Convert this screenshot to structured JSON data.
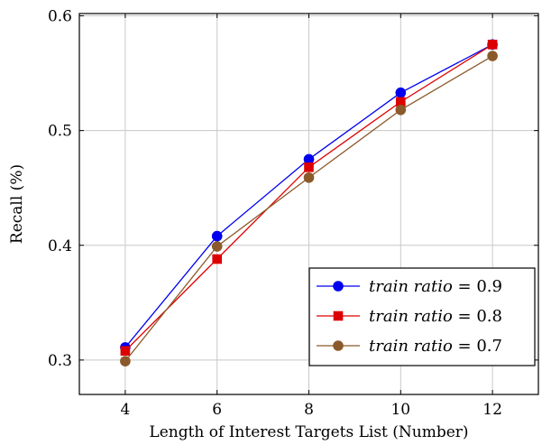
{
  "chart_data": {
    "type": "line",
    "xlabel": "Length of Interest Targets List (Number)",
    "ylabel": "Recall (%)",
    "x": [
      4,
      6,
      8,
      10,
      12
    ],
    "xlim": [
      3,
      13
    ],
    "ylim": [
      0.27,
      0.602
    ],
    "xticks": [
      "4",
      "6",
      "8",
      "10",
      "12"
    ],
    "yticks": [
      "0.3",
      "0.4",
      "0.5",
      "0.6"
    ],
    "ytick_values": [
      0.3,
      0.4,
      0.5,
      0.6
    ],
    "grid": true,
    "legend_position": "bottom-right",
    "series": [
      {
        "name": "train ratio = 0.9",
        "name_italic": "train ratio",
        "name_value": "= 0.9",
        "color": "#0000ee",
        "marker": "circle",
        "values": [
          0.311,
          0.408,
          0.475,
          0.533,
          0.575
        ]
      },
      {
        "name": "train ratio = 0.8",
        "name_italic": "train ratio",
        "name_value": "= 0.8",
        "color": "#dd0000",
        "marker": "square",
        "values": [
          0.308,
          0.388,
          0.468,
          0.525,
          0.575
        ]
      },
      {
        "name": "train ratio = 0.7",
        "name_italic": "train ratio",
        "name_value": "= 0.7",
        "color": "#8b5a2b",
        "marker": "circle",
        "values": [
          0.299,
          0.399,
          0.459,
          0.518,
          0.565
        ]
      }
    ]
  }
}
